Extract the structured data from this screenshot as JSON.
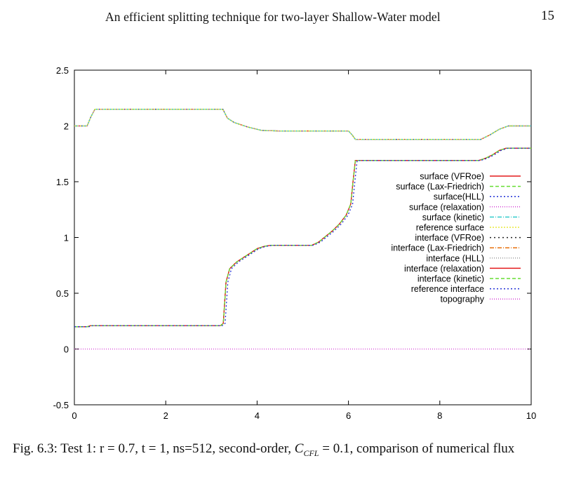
{
  "header": {
    "running_title": "An efficient splitting technique for two-layer Shallow-Water model",
    "page_number": "15"
  },
  "caption": {
    "label": "Fig. 6.3:",
    "text_before_math": "Test 1: r = 0.7, t = 1, ns=512, second-order,",
    "math_symbol": "C",
    "math_subscript": "CFL",
    "text_after_math": "= 0.1, comparison of numerical flux"
  },
  "chart_data": {
    "type": "line",
    "xlim": [
      0,
      10
    ],
    "ylim": [
      -0.5,
      2.5
    ],
    "x_ticks": [
      "0",
      "2",
      "4",
      "6",
      "8",
      "10"
    ],
    "y_ticks": [
      "-0.5",
      "0",
      "0.5",
      "1",
      "1.5",
      "2",
      "2.5"
    ],
    "legend_position": "right",
    "grid": false,
    "surface_profile": {
      "x": [
        0,
        0.28,
        0.36,
        0.45,
        3.25,
        3.35,
        3.5,
        3.8,
        4.1,
        4.5,
        5.0,
        6.0,
        6.08,
        6.15,
        8.7,
        8.9,
        9.1,
        9.3,
        9.5,
        10
      ],
      "y": [
        2.0,
        2.0,
        2.08,
        2.15,
        2.15,
        2.07,
        2.03,
        1.99,
        1.96,
        1.955,
        1.955,
        1.955,
        1.92,
        1.88,
        1.88,
        1.88,
        1.92,
        1.97,
        2.0,
        2.0
      ]
    },
    "interface_profile": {
      "x": [
        0,
        0.28,
        0.36,
        0.45,
        3.2,
        3.26,
        3.32,
        3.4,
        3.55,
        3.7,
        3.85,
        4.0,
        4.15,
        4.3,
        5.2,
        5.35,
        5.5,
        5.65,
        5.8,
        5.95,
        6.05,
        6.1,
        6.15,
        8.85,
        9.0,
        9.15,
        9.3,
        9.45,
        10
      ],
      "y": [
        0.2,
        0.2,
        0.21,
        0.21,
        0.21,
        0.23,
        0.6,
        0.72,
        0.78,
        0.82,
        0.86,
        0.9,
        0.92,
        0.93,
        0.93,
        0.96,
        1.01,
        1.06,
        1.12,
        1.2,
        1.3,
        1.5,
        1.69,
        1.69,
        1.71,
        1.74,
        1.78,
        1.8,
        1.8
      ]
    },
    "topography": {
      "x": [
        0,
        10
      ],
      "y": [
        0,
        0
      ]
    },
    "series": [
      {
        "name": "surface (VFRoe)",
        "profile": "surface",
        "color": "#e41a1c",
        "dash": ""
      },
      {
        "name": "surface (Lax-Friedrich)",
        "profile": "surface",
        "color": "#66dd33",
        "dash": "5,3"
      },
      {
        "name": "surface(HLL)",
        "profile": "surface",
        "color": "#1f2fd6",
        "dash": "2,3"
      },
      {
        "name": "surface (relaxation)",
        "profile": "surface",
        "color": "#d43fd4",
        "dash": "1,2"
      },
      {
        "name": "surface (kinetic)",
        "profile": "surface",
        "color": "#33cccc",
        "dash": "6,2,1,2"
      },
      {
        "name": "reference surface",
        "profile": "surface",
        "color": "#e8e83c",
        "dash": "2,2"
      },
      {
        "name": "interface (VFRoe)",
        "profile": "interface",
        "color": "#222222",
        "dash": "2,4"
      },
      {
        "name": "interface (Lax-Friedrich)",
        "profile": "interface",
        "color": "#e8700c",
        "dash": "6,2,1,2"
      },
      {
        "name": "interface (HLL)",
        "profile": "interface",
        "color": "#999999",
        "dash": "1,2"
      },
      {
        "name": "interface (relaxation)",
        "profile": "interface",
        "color": "#e41a1c",
        "dash": ""
      },
      {
        "name": "interface (kinetic)",
        "profile": "interface",
        "color": "#66dd33",
        "dash": "5,3"
      },
      {
        "name": "reference interface",
        "profile": "interface",
        "color": "#1f2fd6",
        "dash": "2,3",
        "offset_x": 0.04
      },
      {
        "name": "topography",
        "profile": "topography",
        "color": "#d43fd4",
        "dash": "1,2"
      }
    ]
  }
}
